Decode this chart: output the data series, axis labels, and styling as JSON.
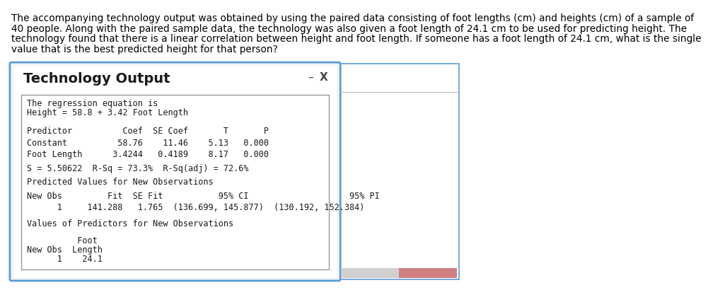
{
  "intro_text_lines": [
    "The accompanying technology output was obtained by using the paired data consisting of foot lengths (cm) and heights (cm) of a sample of",
    "40 people. Along with the paired sample data, the technology was also given a foot length of 24.1 cm to be used for predicting height. The",
    "technology found that there is a linear correlation between height and foot length. If someone has a foot length of 24.1 cm, what is the single",
    "value that is the best predicted height for that person?"
  ],
  "window_title": "Technology Output",
  "border_color": "#5b9bd5",
  "window_bg": "#f5f5f5",
  "inner_border_color": "#999999",
  "line1": "The regression equation is",
  "line2": "Height = 58.8 + 3.42 Foot Length",
  "header_row": "Predictor          Coef  SE Coef       T       P",
  "row1": "Constant          58.76    11.46    5.13   0.000",
  "row2": "Foot Length      3.4244   0.4189    8.17   0.000",
  "stats_line": "S = 5.50622  R-Sq = 73.3%  R-Sq(adj) = 72.6%",
  "pred_header": "Predicted Values for New Observations",
  "pred_col_header": "New Obs         Fit  SE Fit           95% CI                    95% PI",
  "pred_row": "      1     141.288   1.765  (136.699, 145.877)  (130.192, 152.384)",
  "values_header": "Values of Predictors for New Observations",
  "foot_header1": "          Foot",
  "foot_header2": "New Obs  Length",
  "foot_row": "      1    24.1",
  "minimize_btn": "–",
  "close_btn": "X",
  "intro_fontsize": 9.8,
  "title_fontsize": 14,
  "mono_fontsize": 8.5,
  "right_panel_color": "#e8e8e8",
  "bottom_strip_color": "#d0d0d0"
}
